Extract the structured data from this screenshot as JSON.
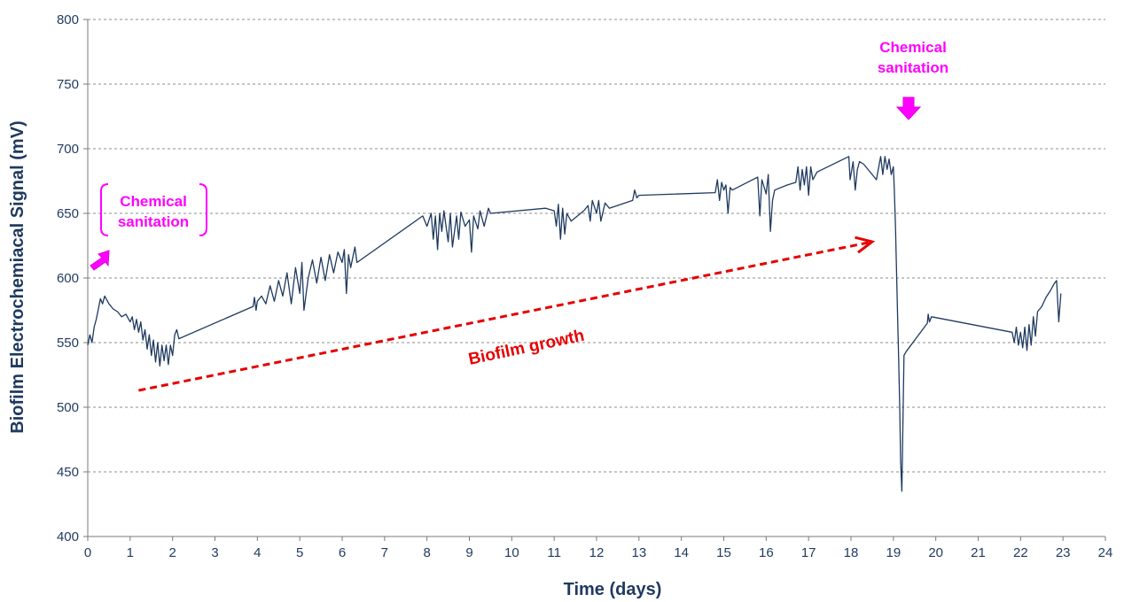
{
  "chart_data": {
    "type": "line",
    "xlabel": "Time (days)",
    "ylabel": "Biofilm Electrochemiacal Signal (mV)",
    "xlim": [
      0,
      24
    ],
    "ylim": [
      400,
      800
    ],
    "x_ticks": [
      "0",
      "1",
      "2",
      "3",
      "4",
      "5",
      "6",
      "7",
      "8",
      "9",
      "10",
      "11",
      "12",
      "13",
      "14",
      "15",
      "16",
      "17",
      "18",
      "19",
      "20",
      "21",
      "22",
      "23",
      "24"
    ],
    "y_ticks": [
      "400",
      "450",
      "500",
      "550",
      "600",
      "650",
      "700",
      "750",
      "800"
    ],
    "grid": "horizontal dashed",
    "series_color": "#1f3a5f",
    "annotation_color": "#ff00ff",
    "trend_color": "#e60000",
    "series": [
      {
        "values": [
          [
            0.0,
            548
          ],
          [
            0.05,
            556
          ],
          [
            0.1,
            550
          ],
          [
            0.15,
            562
          ],
          [
            0.2,
            568
          ],
          [
            0.25,
            576
          ],
          [
            0.3,
            584
          ],
          [
            0.35,
            580
          ],
          [
            0.4,
            586
          ],
          [
            0.5,
            580
          ],
          [
            0.6,
            576
          ],
          [
            0.7,
            574
          ],
          [
            0.8,
            570
          ],
          [
            0.9,
            572
          ],
          [
            1.0,
            566
          ],
          [
            1.05,
            570
          ],
          [
            1.1,
            560
          ],
          [
            1.15,
            568
          ],
          [
            1.2,
            558
          ],
          [
            1.25,
            566
          ],
          [
            1.3,
            552
          ],
          [
            1.35,
            560
          ],
          [
            1.4,
            545
          ],
          [
            1.45,
            556
          ],
          [
            1.5,
            540
          ],
          [
            1.55,
            552
          ],
          [
            1.6,
            535
          ],
          [
            1.65,
            550
          ],
          [
            1.7,
            532
          ],
          [
            1.75,
            548
          ],
          [
            1.8,
            536
          ],
          [
            1.85,
            548
          ],
          [
            1.9,
            533
          ],
          [
            1.95,
            548
          ],
          [
            2.0,
            540
          ],
          [
            2.05,
            556
          ],
          [
            2.1,
            560
          ],
          [
            2.15,
            553
          ],
          [
            3.9,
            578
          ],
          [
            3.93,
            585
          ],
          [
            3.97,
            575
          ],
          [
            4.0,
            582
          ],
          [
            4.1,
            586
          ],
          [
            4.2,
            580
          ],
          [
            4.3,
            594
          ],
          [
            4.4,
            582
          ],
          [
            4.5,
            598
          ],
          [
            4.6,
            586
          ],
          [
            4.7,
            604
          ],
          [
            4.8,
            580
          ],
          [
            4.9,
            608
          ],
          [
            5.0,
            588
          ],
          [
            5.05,
            612
          ],
          [
            5.1,
            575
          ],
          [
            5.2,
            600
          ],
          [
            5.3,
            614
          ],
          [
            5.4,
            596
          ],
          [
            5.5,
            616
          ],
          [
            5.6,
            598
          ],
          [
            5.7,
            618
          ],
          [
            5.8,
            604
          ],
          [
            5.9,
            620
          ],
          [
            6.0,
            612
          ],
          [
            6.05,
            622
          ],
          [
            6.1,
            588
          ],
          [
            6.15,
            618
          ],
          [
            6.2,
            608
          ],
          [
            6.3,
            624
          ],
          [
            6.35,
            612
          ],
          [
            7.9,
            648
          ],
          [
            8.0,
            640
          ],
          [
            8.1,
            650
          ],
          [
            8.15,
            630
          ],
          [
            8.2,
            648
          ],
          [
            8.25,
            622
          ],
          [
            8.3,
            650
          ],
          [
            8.35,
            636
          ],
          [
            8.4,
            652
          ],
          [
            8.5,
            628
          ],
          [
            8.55,
            650
          ],
          [
            8.6,
            624
          ],
          [
            8.7,
            648
          ],
          [
            8.75,
            630
          ],
          [
            8.8,
            651
          ],
          [
            8.9,
            640
          ],
          [
            9.0,
            645
          ],
          [
            9.05,
            620
          ],
          [
            9.1,
            648
          ],
          [
            9.2,
            638
          ],
          [
            9.25,
            652
          ],
          [
            9.35,
            640
          ],
          [
            9.45,
            654
          ],
          [
            9.5,
            650
          ],
          [
            10.8,
            654
          ],
          [
            11.0,
            652
          ],
          [
            11.05,
            640
          ],
          [
            11.1,
            657
          ],
          [
            11.15,
            630
          ],
          [
            11.2,
            654
          ],
          [
            11.25,
            634
          ],
          [
            11.3,
            650
          ],
          [
            11.4,
            644
          ],
          [
            11.7,
            652
          ],
          [
            11.8,
            656
          ],
          [
            11.85,
            644
          ],
          [
            11.9,
            660
          ],
          [
            12.0,
            650
          ],
          [
            12.05,
            660
          ],
          [
            12.1,
            644
          ],
          [
            12.2,
            658
          ],
          [
            12.3,
            654
          ],
          [
            12.85,
            660
          ],
          [
            12.9,
            668
          ],
          [
            12.95,
            662
          ],
          [
            13.0,
            664
          ],
          [
            14.8,
            666
          ],
          [
            14.85,
            676
          ],
          [
            14.9,
            660
          ],
          [
            14.95,
            674
          ],
          [
            15.0,
            668
          ],
          [
            15.05,
            672
          ],
          [
            15.1,
            650
          ],
          [
            15.15,
            670
          ],
          [
            15.2,
            668
          ],
          [
            15.8,
            678
          ],
          [
            15.85,
            648
          ],
          [
            15.9,
            676
          ],
          [
            16.0,
            665
          ],
          [
            16.05,
            680
          ],
          [
            16.1,
            636
          ],
          [
            16.15,
            660
          ],
          [
            16.2,
            668
          ],
          [
            16.5,
            672
          ],
          [
            16.7,
            674
          ],
          [
            16.75,
            686
          ],
          [
            16.8,
            668
          ],
          [
            16.85,
            684
          ],
          [
            16.9,
            672
          ],
          [
            16.95,
            686
          ],
          [
            17.0,
            664
          ],
          [
            17.05,
            686
          ],
          [
            17.1,
            676
          ],
          [
            17.2,
            682
          ],
          [
            17.95,
            694
          ],
          [
            17.98,
            676
          ],
          [
            18.0,
            680
          ],
          [
            18.05,
            690
          ],
          [
            18.1,
            668
          ],
          [
            18.15,
            684
          ],
          [
            18.2,
            690
          ],
          [
            18.3,
            688
          ],
          [
            18.6,
            676
          ],
          [
            18.7,
            694
          ],
          [
            18.75,
            680
          ],
          [
            18.8,
            694
          ],
          [
            18.85,
            684
          ],
          [
            18.9,
            692
          ],
          [
            18.95,
            680
          ],
          [
            19.0,
            686
          ],
          [
            19.02,
            670
          ],
          [
            19.05,
            640
          ],
          [
            19.1,
            570
          ],
          [
            19.12,
            543
          ],
          [
            19.15,
            500
          ],
          [
            19.17,
            458
          ],
          [
            19.2,
            435
          ],
          [
            19.25,
            540
          ],
          [
            19.3,
            543
          ],
          [
            19.8,
            565
          ],
          [
            19.82,
            572
          ],
          [
            19.85,
            566
          ],
          [
            19.9,
            570
          ],
          [
            21.8,
            558
          ],
          [
            21.85,
            550
          ],
          [
            21.9,
            562
          ],
          [
            21.95,
            548
          ],
          [
            22.0,
            558
          ],
          [
            22.05,
            546
          ],
          [
            22.1,
            562
          ],
          [
            22.15,
            544
          ],
          [
            22.2,
            564
          ],
          [
            22.25,
            548
          ],
          [
            22.3,
            570
          ],
          [
            22.35,
            555
          ],
          [
            22.4,
            574
          ],
          [
            22.5,
            578
          ],
          [
            22.6,
            585
          ],
          [
            22.7,
            590
          ],
          [
            22.8,
            596
          ],
          [
            22.85,
            598
          ],
          [
            22.9,
            566
          ],
          [
            22.95,
            588
          ]
        ]
      }
    ],
    "annotations": [
      {
        "text_line1": "Chemical",
        "text_line2": "sanitation",
        "at": [
          0.9,
          650
        ]
      },
      {
        "text_line1": "Chemical",
        "text_line2": "sanitation",
        "at": [
          19.45,
          760
        ]
      },
      {
        "text": "Biofilm growth",
        "trend_from": [
          1.2,
          513
        ],
        "trend_to": [
          18.5,
          628
        ]
      }
    ]
  }
}
